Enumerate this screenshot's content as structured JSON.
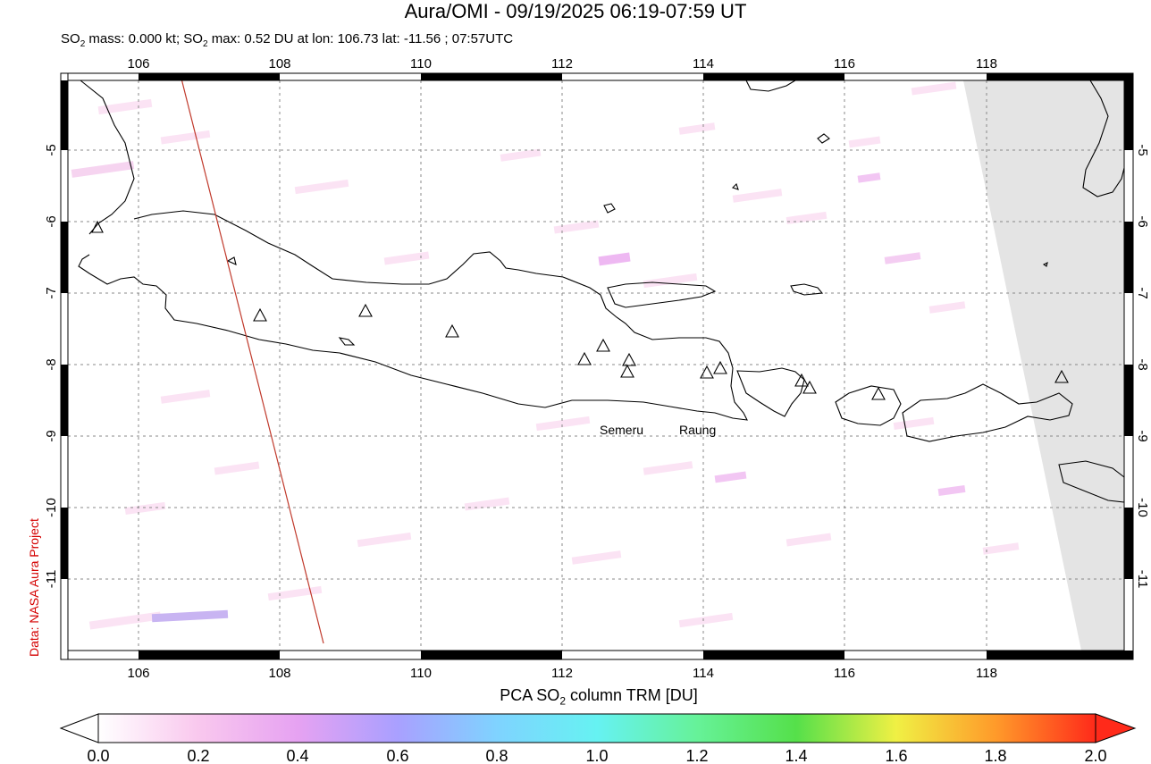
{
  "title": "Aura/OMI - 09/19/2025 06:19-07:59 UT",
  "subtitle": {
    "part1": "SO",
    "sub1": "2",
    "part2": " mass: 0.000 kt; SO",
    "sub2": "2",
    "part3": " max: 0.52 DU at lon: 106.73 lat: -11.56 ; 07:57UTC"
  },
  "credit": "Data: NASA Aura Project",
  "map": {
    "lon_range": [
      105,
      120
    ],
    "lat_range": [
      -12,
      -4
    ],
    "lon_ticks": [
      "106",
      "108",
      "110",
      "112",
      "114",
      "116",
      "118"
    ],
    "lat_ticks": [
      "-5",
      "-6",
      "-7",
      "-8",
      "-9",
      "-10",
      "-11"
    ],
    "volcano_labels": [
      "Semeru",
      "Raung"
    ]
  },
  "colorbar": {
    "title_part1": "PCA SO",
    "title_sub": "2",
    "title_part2": " column TRM [DU]",
    "ticks": [
      "0.0",
      "0.2",
      "0.4",
      "0.6",
      "0.8",
      "1.0",
      "1.2",
      "1.4",
      "1.6",
      "1.8",
      "2.0"
    ],
    "colors": [
      "#ffffff",
      "#f9c8ee",
      "#e6a2f2",
      "#a9a0ff",
      "#7fd3ff",
      "#66f2f2",
      "#66f299",
      "#55e04a",
      "#f0f044",
      "#ff9a2a",
      "#ff2a1a"
    ]
  }
}
